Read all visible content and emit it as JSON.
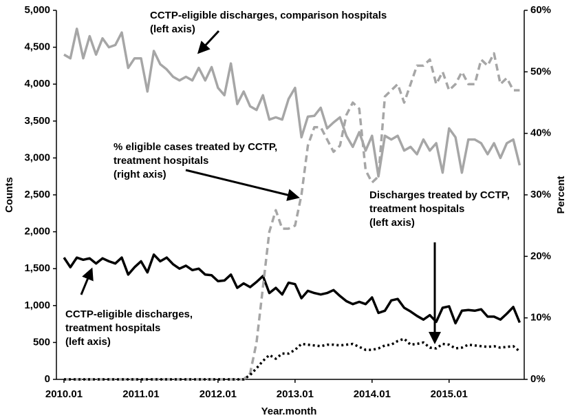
{
  "chart_data": {
    "type": "line",
    "x_label": "Year.month",
    "y_label": "Counts",
    "y2_label": "Percent",
    "categories": [
      "2010.01",
      null,
      null,
      null,
      null,
      null,
      null,
      null,
      null,
      null,
      null,
      null,
      "2011.01",
      null,
      null,
      null,
      null,
      null,
      null,
      null,
      null,
      null,
      null,
      null,
      "2012.01",
      null,
      null,
      null,
      null,
      null,
      null,
      null,
      null,
      null,
      null,
      null,
      "2013.01",
      null,
      null,
      null,
      null,
      null,
      null,
      null,
      null,
      null,
      null,
      null,
      "2014.01",
      null,
      null,
      null,
      null,
      null,
      null,
      null,
      null,
      null,
      null,
      null,
      "2015.01",
      null,
      null,
      null,
      null,
      null,
      null,
      null,
      null,
      null,
      null,
      null
    ],
    "ylim": [
      0,
      5000
    ],
    "yticks": [
      0,
      500,
      {
        "value": 1000,
        "label": "1,000"
      },
      {
        "value": 1500,
        "label": "1,500"
      },
      {
        "value": 2000,
        "label": "2,000"
      },
      {
        "value": 2500,
        "label": "2,500"
      },
      {
        "value": 3000,
        "label": "3,000"
      },
      {
        "value": 3500,
        "label": "3,500"
      },
      {
        "value": 4000,
        "label": "4,000"
      },
      {
        "value": 4500,
        "label": "4,500"
      },
      {
        "value": 5000,
        "label": "5,000"
      }
    ],
    "y2lim": [
      0,
      60
    ],
    "y2ticks": [
      {
        "value": 0,
        "label": "0%"
      },
      {
        "value": 10,
        "label": "10%"
      },
      {
        "value": 20,
        "label": "20%"
      },
      {
        "value": 30,
        "label": "30%"
      },
      {
        "value": 40,
        "label": "40%"
      },
      {
        "value": 50,
        "label": "50%"
      },
      {
        "value": 60,
        "label": "60%"
      }
    ],
    "grid": false,
    "series": [
      {
        "color": "#a6a6a6",
        "line_style": "solid",
        "axis": "y",
        "values": [
          4400,
          4350,
          4750,
          4350,
          4650,
          4400,
          4620,
          4500,
          4530,
          4700,
          4220,
          4350,
          4350,
          3900,
          4450,
          4270,
          4200,
          4100,
          4050,
          4100,
          4050,
          4220,
          4050,
          4230,
          3950,
          3850,
          4280,
          3730,
          3900,
          3700,
          3650,
          3850,
          3520,
          3550,
          3520,
          3800,
          3950,
          3280,
          3560,
          3570,
          3680,
          3400,
          3480,
          3550,
          3300,
          3150,
          3350,
          3100,
          3300,
          2750,
          3300,
          3250,
          3300,
          3100,
          3150,
          3050,
          3250,
          3100,
          3200,
          2800,
          3400,
          3280,
          2800,
          3250,
          3250,
          3200,
          3050,
          3200,
          3000,
          3200,
          3250,
          2900
        ]
      },
      {
        "color": "#000000",
        "line_style": "solid",
        "axis": "y",
        "values": [
          1650,
          1520,
          1650,
          1620,
          1640,
          1570,
          1640,
          1600,
          1570,
          1650,
          1420,
          1520,
          1600,
          1450,
          1690,
          1600,
          1650,
          1560,
          1500,
          1540,
          1480,
          1500,
          1420,
          1410,
          1330,
          1340,
          1420,
          1240,
          1300,
          1250,
          1320,
          1400,
          1170,
          1240,
          1150,
          1310,
          1290,
          1100,
          1200,
          1170,
          1150,
          1170,
          1210,
          1130,
          1060,
          1020,
          1050,
          1020,
          1110,
          900,
          930,
          1070,
          1090,
          970,
          920,
          860,
          810,
          870,
          780,
          970,
          990,
          760,
          930,
          940,
          930,
          950,
          850,
          850,
          810,
          890,
          980,
          770
        ]
      },
      {
        "color": "#a6a6a6",
        "line_style": "dashed",
        "axis": "y2",
        "values": [
          0,
          0,
          0,
          0,
          0,
          0,
          0,
          0,
          0,
          0,
          0,
          0,
          0,
          0,
          0,
          0,
          0,
          0,
          0,
          0,
          0,
          0,
          0,
          0,
          0,
          0,
          0,
          0,
          0,
          1,
          6,
          15,
          24,
          27.5,
          24.5,
          24.5,
          25,
          30,
          38,
          41,
          41,
          39,
          37,
          38,
          43,
          45,
          44,
          34,
          32,
          33,
          46,
          47,
          48,
          45,
          48,
          51,
          51,
          52,
          48,
          50,
          47,
          48,
          50,
          48,
          48,
          52,
          51,
          53,
          48,
          49,
          47,
          47
        ]
      },
      {
        "color": "#000000",
        "line_style": "dotted",
        "axis": "y",
        "values": [
          0,
          0,
          0,
          0,
          0,
          0,
          0,
          0,
          0,
          0,
          0,
          0,
          0,
          0,
          0,
          0,
          0,
          0,
          0,
          0,
          0,
          0,
          0,
          0,
          0,
          0,
          0,
          0,
          0,
          60,
          150,
          250,
          330,
          280,
          350,
          350,
          400,
          480,
          470,
          460,
          450,
          470,
          470,
          460,
          470,
          480,
          440,
          400,
          400,
          420,
          460,
          470,
          520,
          550,
          470,
          480,
          500,
          430,
          420,
          480,
          470,
          420,
          430,
          470,
          460,
          450,
          440,
          450,
          430,
          440,
          450,
          380
        ]
      }
    ],
    "annotations": [
      {
        "lines": [
          "CCTP-eligible discharges, comparison hospitals",
          "(left axis)"
        ]
      },
      {
        "lines": [
          "% eligible cases treated by CCTP,",
          "treatment hospitals",
          "(right axis)"
        ]
      },
      {
        "lines": [
          "Discharges treated by CCTP,",
          "treatment hospitals",
          "(left axis)"
        ]
      },
      {
        "lines": [
          "CCTP-eligible discharges,",
          "treatment hospitals",
          "(left axis)"
        ]
      }
    ]
  }
}
